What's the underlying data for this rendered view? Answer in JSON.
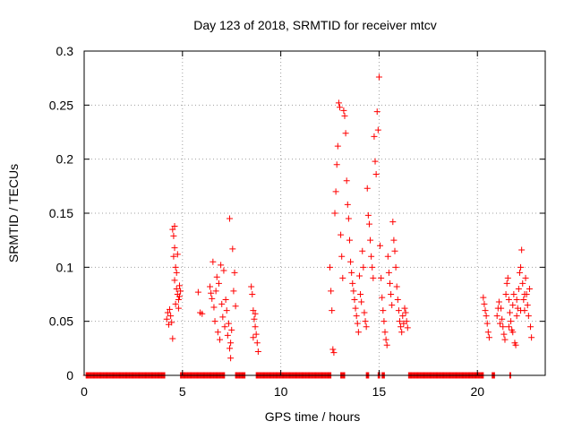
{
  "chart_data": {
    "type": "scatter",
    "title": "Day 123 of 2018, SRMTID for receiver mtcv",
    "xlabel": "GPS time / hours",
    "ylabel": "SRMTID / TECUs",
    "xlim": [
      0,
      23.45
    ],
    "ylim": [
      0,
      0.3
    ],
    "xticks": [
      0,
      5,
      10,
      15,
      20
    ],
    "xtick_labels": [
      "0",
      "5",
      "10",
      "15",
      "20"
    ],
    "yticks": [
      0,
      0.05,
      0.1,
      0.15,
      0.2,
      0.25,
      0.3
    ],
    "ytick_labels": [
      "0",
      "0.05",
      "0.1",
      "0.15",
      "0.2",
      "0.25",
      "0.3"
    ],
    "grid": true,
    "marker": "plus",
    "series": [
      {
        "name": "SRMTID",
        "color": "#ff0000",
        "points": [
          [
            4.2,
            0.052
          ],
          [
            4.25,
            0.058
          ],
          [
            4.3,
            0.047
          ],
          [
            4.35,
            0.061
          ],
          [
            4.4,
            0.055
          ],
          [
            4.45,
            0.049
          ],
          [
            4.5,
            0.034
          ],
          [
            4.5,
            0.135
          ],
          [
            4.55,
            0.129
          ],
          [
            4.6,
            0.138
          ],
          [
            4.55,
            0.11
          ],
          [
            4.6,
            0.118
          ],
          [
            4.65,
            0.1
          ],
          [
            4.7,
            0.095
          ],
          [
            4.6,
            0.088
          ],
          [
            4.7,
            0.08
          ],
          [
            4.75,
            0.075
          ],
          [
            4.8,
            0.07
          ],
          [
            4.65,
            0.066
          ],
          [
            4.8,
            0.062
          ],
          [
            4.85,
            0.073
          ],
          [
            4.75,
            0.112
          ],
          [
            4.85,
            0.083
          ],
          [
            4.9,
            0.078
          ],
          [
            5.8,
            0.077
          ],
          [
            5.9,
            0.058
          ],
          [
            6.0,
            0.057
          ],
          [
            6.4,
            0.082
          ],
          [
            6.45,
            0.076
          ],
          [
            6.5,
            0.071
          ],
          [
            6.55,
            0.105
          ],
          [
            6.6,
            0.063
          ],
          [
            6.65,
            0.05
          ],
          [
            6.7,
            0.078
          ],
          [
            6.75,
            0.091
          ],
          [
            6.8,
            0.04
          ],
          [
            6.85,
            0.085
          ],
          [
            6.9,
            0.033
          ],
          [
            6.95,
            0.102
          ],
          [
            7.0,
            0.066
          ],
          [
            7.05,
            0.054
          ],
          [
            7.1,
            0.097
          ],
          [
            7.15,
            0.045
          ],
          [
            7.2,
            0.07
          ],
          [
            7.25,
            0.06
          ],
          [
            7.3,
            0.037
          ],
          [
            7.35,
            0.048
          ],
          [
            7.4,
            0.145
          ],
          [
            7.45,
            0.03
          ],
          [
            7.5,
            0.042
          ],
          [
            7.55,
            0.117
          ],
          [
            7.6,
            0.078
          ],
          [
            7.65,
            0.095
          ],
          [
            7.7,
            0.064
          ],
          [
            7.45,
            0.016
          ],
          [
            7.4,
            0.025
          ],
          [
            8.5,
            0.082
          ],
          [
            8.55,
            0.075
          ],
          [
            8.6,
            0.06
          ],
          [
            8.65,
            0.052
          ],
          [
            8.7,
            0.045
          ],
          [
            8.75,
            0.038
          ],
          [
            8.8,
            0.03
          ],
          [
            8.85,
            0.022
          ],
          [
            8.6,
            0.035
          ],
          [
            8.7,
            0.057
          ],
          [
            12.5,
            0.1
          ],
          [
            12.55,
            0.078
          ],
          [
            12.6,
            0.06
          ],
          [
            12.65,
            0.024
          ],
          [
            12.7,
            0.021
          ],
          [
            12.75,
            0.15
          ],
          [
            12.8,
            0.17
          ],
          [
            12.85,
            0.195
          ],
          [
            12.9,
            0.212
          ],
          [
            12.95,
            0.252
          ],
          [
            13.0,
            0.248
          ],
          [
            13.05,
            0.13
          ],
          [
            13.1,
            0.11
          ],
          [
            13.15,
            0.09
          ],
          [
            13.2,
            0.245
          ],
          [
            13.25,
            0.24
          ],
          [
            13.3,
            0.224
          ],
          [
            13.35,
            0.18
          ],
          [
            13.4,
            0.158
          ],
          [
            13.45,
            0.145
          ],
          [
            13.5,
            0.125
          ],
          [
            13.55,
            0.105
          ],
          [
            13.6,
            0.095
          ],
          [
            13.65,
            0.085
          ],
          [
            13.7,
            0.078
          ],
          [
            13.75,
            0.07
          ],
          [
            13.8,
            0.062
          ],
          [
            13.85,
            0.055
          ],
          [
            13.9,
            0.048
          ],
          [
            13.95,
            0.04
          ],
          [
            14.0,
            0.092
          ],
          [
            14.05,
            0.075
          ],
          [
            14.1,
            0.068
          ],
          [
            14.15,
            0.115
          ],
          [
            14.2,
            0.1
          ],
          [
            14.25,
            0.058
          ],
          [
            14.3,
            0.05
          ],
          [
            14.35,
            0.045
          ],
          [
            14.4,
            0.173
          ],
          [
            14.45,
            0.148
          ],
          [
            14.5,
            0.14
          ],
          [
            14.55,
            0.125
          ],
          [
            14.6,
            0.11
          ],
          [
            14.65,
            0.1
          ],
          [
            14.7,
            0.09
          ],
          [
            14.75,
            0.221
          ],
          [
            14.8,
            0.198
          ],
          [
            14.85,
            0.186
          ],
          [
            14.9,
            0.244
          ],
          [
            14.95,
            0.227
          ],
          [
            15.0,
            0.276
          ],
          [
            15.05,
            0.12
          ],
          [
            15.1,
            0.09
          ],
          [
            15.15,
            0.072
          ],
          [
            15.2,
            0.06
          ],
          [
            15.25,
            0.05
          ],
          [
            15.3,
            0.04
          ],
          [
            15.35,
            0.033
          ],
          [
            15.4,
            0.028
          ],
          [
            15.45,
            0.11
          ],
          [
            15.5,
            0.095
          ],
          [
            15.55,
            0.085
          ],
          [
            15.6,
            0.075
          ],
          [
            15.65,
            0.065
          ],
          [
            15.7,
            0.142
          ],
          [
            15.75,
            0.125
          ],
          [
            15.8,
            0.115
          ],
          [
            15.85,
            0.1
          ],
          [
            15.9,
            0.082
          ],
          [
            15.95,
            0.07
          ],
          [
            16.0,
            0.06
          ],
          [
            16.05,
            0.05
          ],
          [
            16.1,
            0.045
          ],
          [
            16.15,
            0.04
          ],
          [
            16.2,
            0.055
          ],
          [
            16.25,
            0.048
          ],
          [
            16.3,
            0.062
          ],
          [
            16.35,
            0.058
          ],
          [
            16.4,
            0.05
          ],
          [
            16.45,
            0.044
          ],
          [
            20.3,
            0.072
          ],
          [
            20.35,
            0.066
          ],
          [
            20.4,
            0.06
          ],
          [
            20.45,
            0.055
          ],
          [
            20.5,
            0.048
          ],
          [
            20.55,
            0.04
          ],
          [
            20.6,
            0.035
          ],
          [
            21.1,
            0.068
          ],
          [
            21.2,
            0.062
          ],
          [
            21.3,
            0.045
          ],
          [
            21.35,
            0.038
          ],
          [
            21.4,
            0.033
          ],
          [
            21.45,
            0.075
          ],
          [
            21.5,
            0.085
          ],
          [
            21.55,
            0.09
          ],
          [
            21.6,
            0.07
          ],
          [
            21.65,
            0.058
          ],
          [
            21.7,
            0.05
          ],
          [
            21.75,
            0.042
          ],
          [
            21.8,
            0.065
          ],
          [
            21.85,
            0.075
          ],
          [
            21.9,
            0.03
          ],
          [
            21.95,
            0.028
          ],
          [
            22.0,
            0.055
          ],
          [
            22.05,
            0.062
          ],
          [
            22.1,
            0.08
          ],
          [
            22.15,
            0.095
          ],
          [
            22.2,
            0.1
          ],
          [
            22.25,
            0.116
          ],
          [
            22.3,
            0.085
          ],
          [
            22.35,
            0.07
          ],
          [
            22.4,
            0.06
          ],
          [
            22.45,
            0.09
          ],
          [
            22.5,
            0.075
          ],
          [
            22.55,
            0.065
          ],
          [
            22.6,
            0.055
          ],
          [
            22.65,
            0.08
          ],
          [
            22.7,
            0.045
          ],
          [
            22.75,
            0.035
          ],
          [
            21.0,
            0.055
          ],
          [
            21.05,
            0.062
          ],
          [
            21.15,
            0.048
          ],
          [
            21.25,
            0.052
          ],
          [
            21.6,
            0.045
          ],
          [
            21.8,
            0.04
          ],
          [
            22.0,
            0.07
          ],
          [
            22.2,
            0.06
          ],
          [
            22.4,
            0.075
          ]
        ],
        "zero_runs": [
          [
            0.1,
            4.1
          ],
          [
            4.9,
            7.15
          ],
          [
            7.7,
            8.2
          ],
          [
            8.75,
            12.55
          ],
          [
            13.05,
            13.25
          ],
          [
            14.35,
            14.5
          ],
          [
            14.95,
            15.05
          ],
          [
            15.15,
            15.3
          ],
          [
            16.5,
            20.3
          ],
          [
            20.75,
            20.9
          ],
          [
            21.65,
            21.7
          ]
        ],
        "zero_spacing": 0.04
      }
    ]
  }
}
